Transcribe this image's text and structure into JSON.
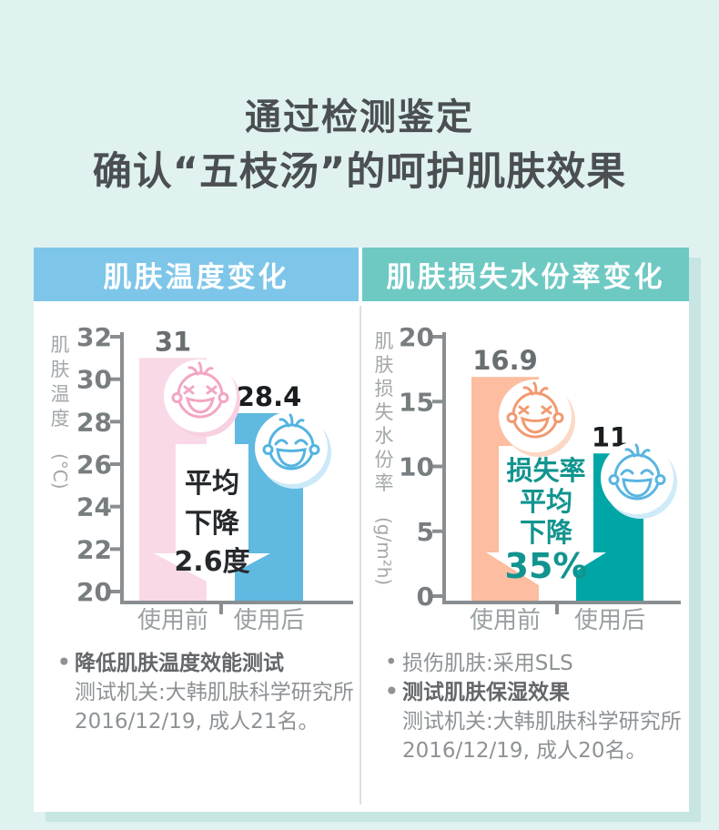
{
  "title": {
    "line1": "通过检测鉴定",
    "line2": "确认“五枝汤”的呵护肌肤效果"
  },
  "colors": {
    "page_bg": "#dff2f0",
    "card_bg": "#ffffff",
    "card_shadow": "#c7e5e2",
    "left_header_bg": "#7ec6e9",
    "right_header_bg": "#6ec9c3",
    "axis": "#898e91",
    "tick_label": "#787d80",
    "axis_title": "#a3a8ab",
    "category_label": "#9aa0a2",
    "divider": "#dcdfde",
    "arrow_fill": "#ffffff"
  },
  "panels": [
    {
      "header": "肌肤温度变化",
      "notes": [
        {
          "bullet": true,
          "bold": true,
          "text": "降低肌肤温度效能测试"
        },
        {
          "bullet": false,
          "bold": false,
          "text": "测试机关:大韩肌肤科学研究所"
        },
        {
          "bullet": false,
          "bold": false,
          "text": "2016/12/19, 成人21名。"
        }
      ]
    },
    {
      "header": "肌肤损失水份率变化",
      "notes": [
        {
          "bullet": true,
          "bold": false,
          "text": "损伤肌肤:采用SLS"
        },
        {
          "bullet": true,
          "bold": true,
          "text": "测试肌肤保湿效果"
        },
        {
          "bullet": false,
          "bold": false,
          "text": "测试机关:大韩肌肤科学研究所"
        },
        {
          "bullet": false,
          "bold": false,
          "text": "2016/12/19, 成人20名。"
        }
      ]
    }
  ],
  "chart_data": [
    {
      "type": "bar",
      "title": "肌肤温度变化",
      "ylabel": "肌肤温度",
      "yunit": "(°C)",
      "ylim": [
        20,
        32
      ],
      "yticks": [
        32,
        30,
        28,
        26,
        24,
        22,
        20
      ],
      "categories": [
        "使用前",
        "使用后"
      ],
      "values": [
        31,
        28.4
      ],
      "value_labels": [
        "31",
        "28.4"
      ],
      "value_label_colors": [
        "#696e71",
        "#191d20"
      ],
      "bar_colors": [
        "#f9d9e7",
        "#5fb9e0"
      ],
      "faces": [
        {
          "mood": "sad",
          "color": "#f2a6c3",
          "tint": "#f8d0e2"
        },
        {
          "mood": "happy",
          "color": "#54b4e0",
          "tint": "#cbe9f8"
        }
      ],
      "arrow": {
        "lines": [
          "平均",
          "下降",
          "2.6度"
        ],
        "big_line": null,
        "color": "#26292c"
      },
      "legend": null,
      "grid": false
    },
    {
      "type": "bar",
      "title": "肌肤损失水份率变化",
      "ylabel": "肌肤损失水份率",
      "yunit": "(g/m²h)",
      "ylim": [
        0,
        20
      ],
      "yticks": [
        20,
        15,
        10,
        5,
        0
      ],
      "categories": [
        "使用前",
        "使用后"
      ],
      "values": [
        16.9,
        11
      ],
      "value_labels": [
        "16.9",
        "11"
      ],
      "value_label_colors": [
        "#696e71",
        "#191d20"
      ],
      "bar_colors": [
        "#fcbda0",
        "#00a6a6"
      ],
      "faces": [
        {
          "mood": "sad",
          "color": "#f09a72",
          "tint": "#fcd9c6"
        },
        {
          "mood": "happy",
          "color": "#5ab5e1",
          "tint": "#cfeaf8"
        }
      ],
      "arrow": {
        "lines": [
          "损失率",
          "平均",
          "下降"
        ],
        "big_line": "35%",
        "color": "#11948f"
      },
      "legend": null,
      "grid": false
    }
  ]
}
